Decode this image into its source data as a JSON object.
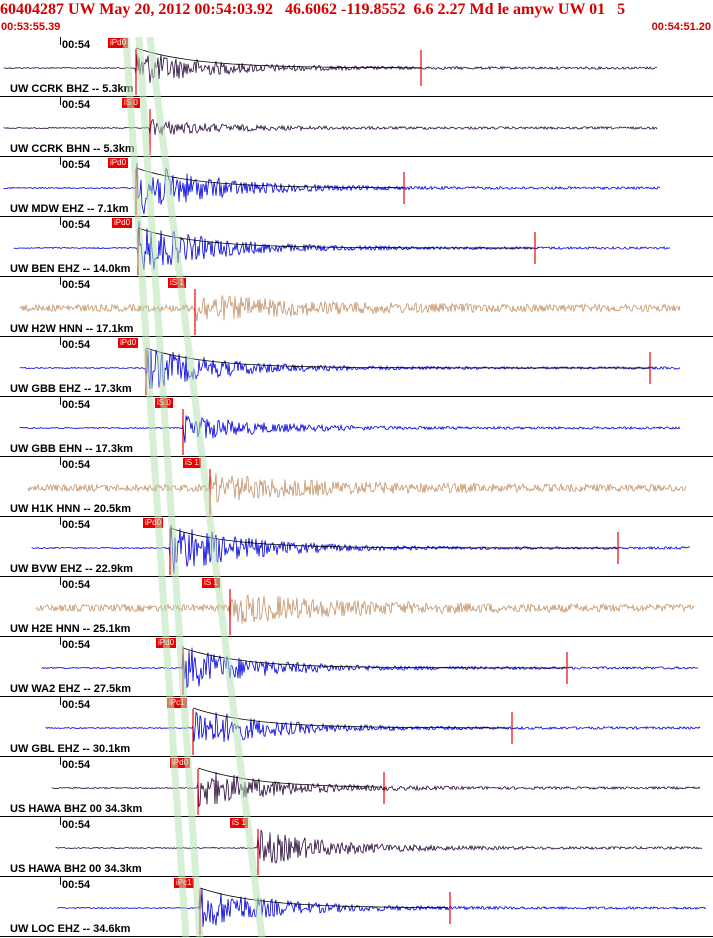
{
  "header": {
    "title": "60404287 UW May 20, 2012 00:54:03.92   46.6062 -119.8552  6.6 2.27 Md le amyw UW 01   5",
    "start_time": "00:53:55.39",
    "end_time": "00:54:51.20"
  },
  "colors": {
    "title": "#d40000",
    "pick": "#ee0000",
    "band": "#b7e3b3",
    "blue": "#0000dd",
    "tan": "#c4956c",
    "purple": "#2a0a3c"
  },
  "traces": [
    {
      "tick": "00:54",
      "label": "UW CCRK BHZ -- 5.3km",
      "pick": "iPd0",
      "color": "#2a0a3c"
    },
    {
      "tick": "00:54",
      "label": "UW CCRK BHN -- 5.3km",
      "pick": "iS 0",
      "color": "#2a0a3c"
    },
    {
      "tick": "00:54",
      "label": "UW MDW EHZ -- 7.1km",
      "pick": "iPd0",
      "color": "#0000dd"
    },
    {
      "tick": "00:54",
      "label": "UW BEN EHZ -- 14.0km",
      "pick": "iPd0",
      "color": "#0000dd"
    },
    {
      "tick": "00:54",
      "label": "UW H2W HNN -- 17.1km",
      "pick": "iS 1",
      "color": "#c4956c"
    },
    {
      "tick": "00:54",
      "label": "UW GBB EHZ -- 17.3km",
      "pick": "iPd0",
      "color": "#0000dd"
    },
    {
      "tick": "00:54",
      "label": "UW GBB EHN -- 17.3km",
      "pick": "iS 0",
      "color": "#0000dd"
    },
    {
      "tick": "00:54",
      "label": "UW H1K HNN -- 20.5km",
      "pick": "iS 1",
      "color": "#c4956c"
    },
    {
      "tick": "00:54",
      "label": "UW BVW EHZ -- 22.9km",
      "pick": "iPd0",
      "color": "#0000dd"
    },
    {
      "tick": "00:54",
      "label": "UW H2E HNN -- 25.1km",
      "pick": "iS 1",
      "color": "#c4956c"
    },
    {
      "tick": "00:54",
      "label": "UW WA2 EHZ -- 27.5km",
      "pick": "iPd0",
      "color": "#0000dd"
    },
    {
      "tick": "00:54",
      "label": "UW GBL EHZ -- 30.1km",
      "pick": "iPc1",
      "color": "#0000dd"
    },
    {
      "tick": "00:54",
      "label": "US HAWA BHZ 00 34.3km",
      "pick": "iPd0",
      "color": "#2a0a3c"
    },
    {
      "tick": "00:54",
      "label": "US HAWA BH2 00 34.3km",
      "pick": "iS 1",
      "color": "#2a0a3c"
    },
    {
      "tick": "00:54",
      "label": "UW LOC EHZ -- 34.6km",
      "pick": "iPc1",
      "color": "#0000dd"
    }
  ]
}
